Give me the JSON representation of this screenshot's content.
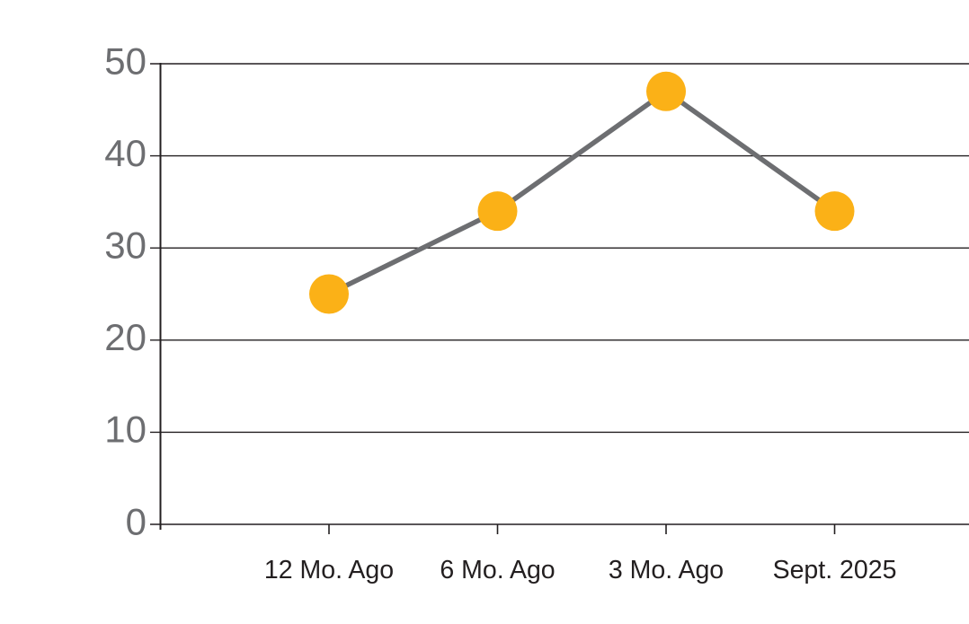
{
  "chart_data": {
    "type": "line",
    "title": "",
    "xlabel": "",
    "ylabel": "",
    "categories": [
      "12 Mo. Ago",
      "6 Mo. Ago",
      "3 Mo. Ago",
      "Sept. 2025"
    ],
    "values": [
      25,
      34,
      47,
      34
    ],
    "series": [
      {
        "name": "",
        "values": [
          25,
          34,
          47,
          34
        ]
      }
    ],
    "ylim": [
      0,
      50
    ],
    "yticks": [
      0,
      10,
      20,
      30,
      40,
      50
    ],
    "grid": true,
    "legend_position": "none",
    "marker_style": "filled-circle",
    "colors": {
      "marker": "#FBB117",
      "line": "#6D6E71",
      "grid": "#231F20",
      "axis": "#231F20",
      "y_tick_label": "#6D6E71",
      "x_tick_label": "#231F20",
      "background": "#FFFFFF"
    }
  }
}
